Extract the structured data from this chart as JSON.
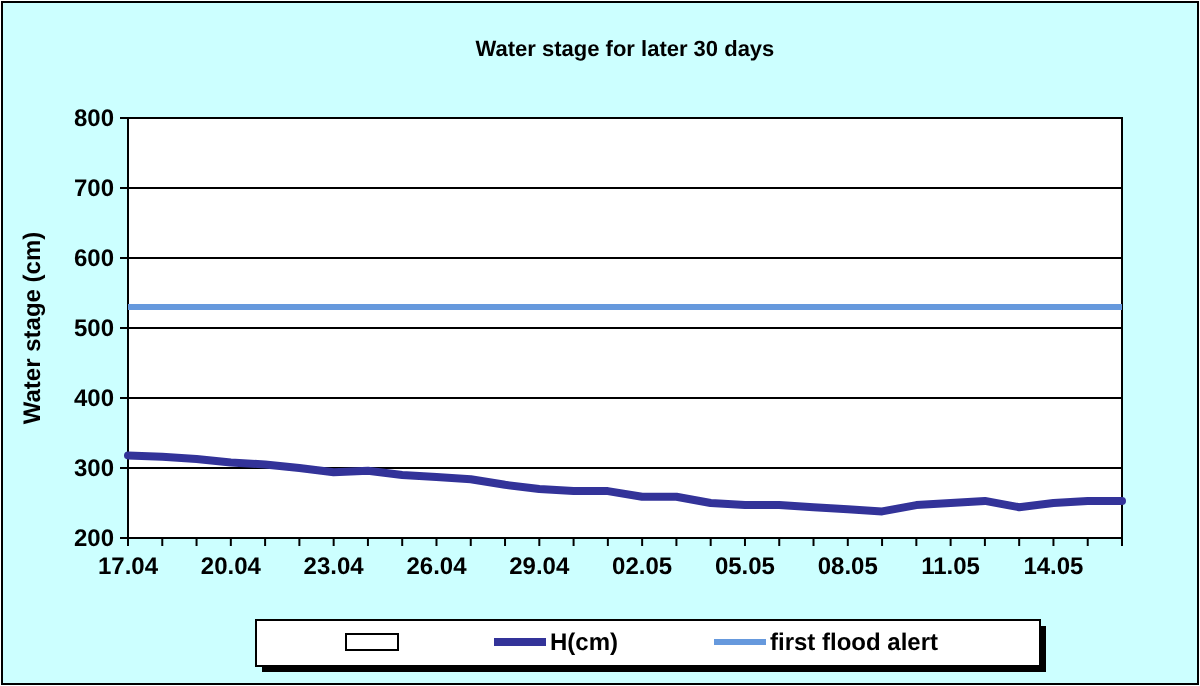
{
  "chart_data": {
    "type": "line",
    "title": "Water stage for later 30 days",
    "ylabel": "Water stage (cm)",
    "categories": [
      "17.04",
      null,
      null,
      "20.04",
      null,
      null,
      "23.04",
      null,
      null,
      "26.04",
      null,
      null,
      "29.04",
      null,
      null,
      "02.05",
      null,
      null,
      "05.05",
      null,
      null,
      "08.05",
      null,
      null,
      "11.05",
      null,
      null,
      "14.05",
      null,
      null
    ],
    "series": [
      {
        "name": "H(cm)",
        "color": "#333399",
        "values": [
          318,
          316,
          313,
          308,
          305,
          300,
          294,
          296,
          290,
          287,
          284,
          276,
          270,
          267,
          267,
          259,
          259,
          250,
          247,
          247,
          244,
          241,
          238,
          247,
          250,
          253,
          244,
          250,
          253,
          253
        ]
      }
    ],
    "ref_lines": [
      {
        "axis": "y",
        "value": 530,
        "label": "first flood alert",
        "color": "#6699dd"
      }
    ],
    "ylim": [
      200,
      800
    ],
    "yticks": [
      200,
      300,
      400,
      500,
      600,
      700,
      800
    ],
    "grid": "y",
    "legend": "bottom",
    "marker": "none",
    "line_style": "solid"
  }
}
